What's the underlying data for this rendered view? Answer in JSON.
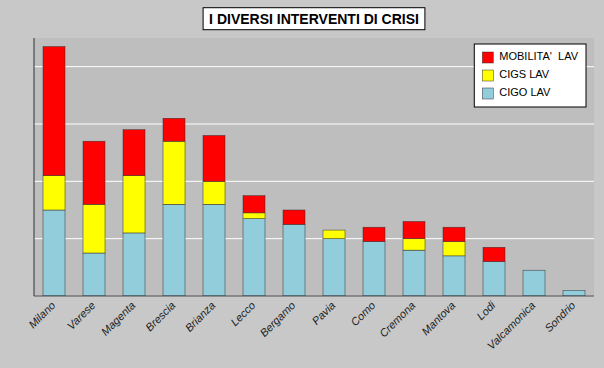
{
  "chart_data": {
    "type": "bar",
    "stacked": true,
    "title": "I DIVERSI INTERVENTI DI CRISI",
    "categories": [
      "Milano",
      "Varese",
      "Magenta",
      "Brescia",
      "Brianza",
      "Lecco",
      "Bergamo",
      "Pavia",
      "Como",
      "Cremona",
      "Mantova",
      "Lodi",
      "Valcamonica",
      "Sondrio"
    ],
    "series": [
      {
        "name": "CIGO LAV",
        "color": "#92CDDC",
        "values": [
          30,
          15,
          22,
          32,
          32,
          27,
          25,
          20,
          19,
          16,
          14,
          12,
          9,
          2
        ]
      },
      {
        "name": "CIGS LAV",
        "color": "#FFFF00",
        "values": [
          12,
          17,
          20,
          22,
          8,
          2,
          0,
          3,
          0,
          4,
          5,
          0,
          0,
          0
        ]
      },
      {
        "name": "MOBILITA'  LAV",
        "color": "#FF0000",
        "values": [
          45,
          22,
          16,
          8,
          16,
          6,
          5,
          0,
          5,
          6,
          5,
          5,
          0,
          0
        ]
      }
    ],
    "ylim": [
      0,
      90
    ],
    "yticks": [
      0,
      20,
      40,
      60,
      80
    ],
    "grid": true,
    "legend": "upper right",
    "tick_labels": "x"
  }
}
